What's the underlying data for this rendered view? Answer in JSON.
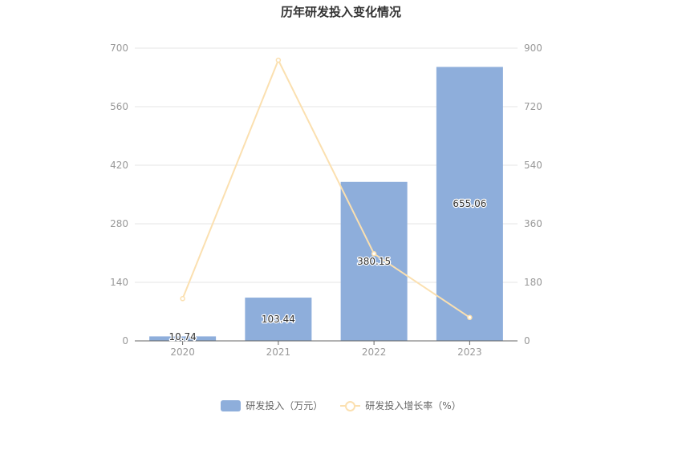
{
  "chart_data": {
    "type": "bar",
    "title": "历年研发投入变化情况",
    "categories": [
      "2020",
      "2021",
      "2022",
      "2023"
    ],
    "series": [
      {
        "name": "研发投入（万元）",
        "type": "bar",
        "axis": "left",
        "values": [
          10.74,
          103.44,
          380.15,
          655.06
        ],
        "labels": [
          "10.74",
          "103.44",
          "380.15",
          "655.06"
        ],
        "color": "#8eaedb"
      },
      {
        "name": "研发投入增长率（%）",
        "type": "line",
        "axis": "right",
        "values": [
          130,
          863,
          268,
          72
        ],
        "color": "#fbe0b0"
      }
    ],
    "y_left": {
      "min": 0,
      "max": 700,
      "ticks": [
        "0",
        "140",
        "280",
        "420",
        "560",
        "700"
      ]
    },
    "y_right": {
      "min": 0,
      "max": 900,
      "ticks": [
        "0",
        "180",
        "360",
        "540",
        "720",
        "900"
      ]
    },
    "grid": true,
    "legend_position": "bottom"
  }
}
